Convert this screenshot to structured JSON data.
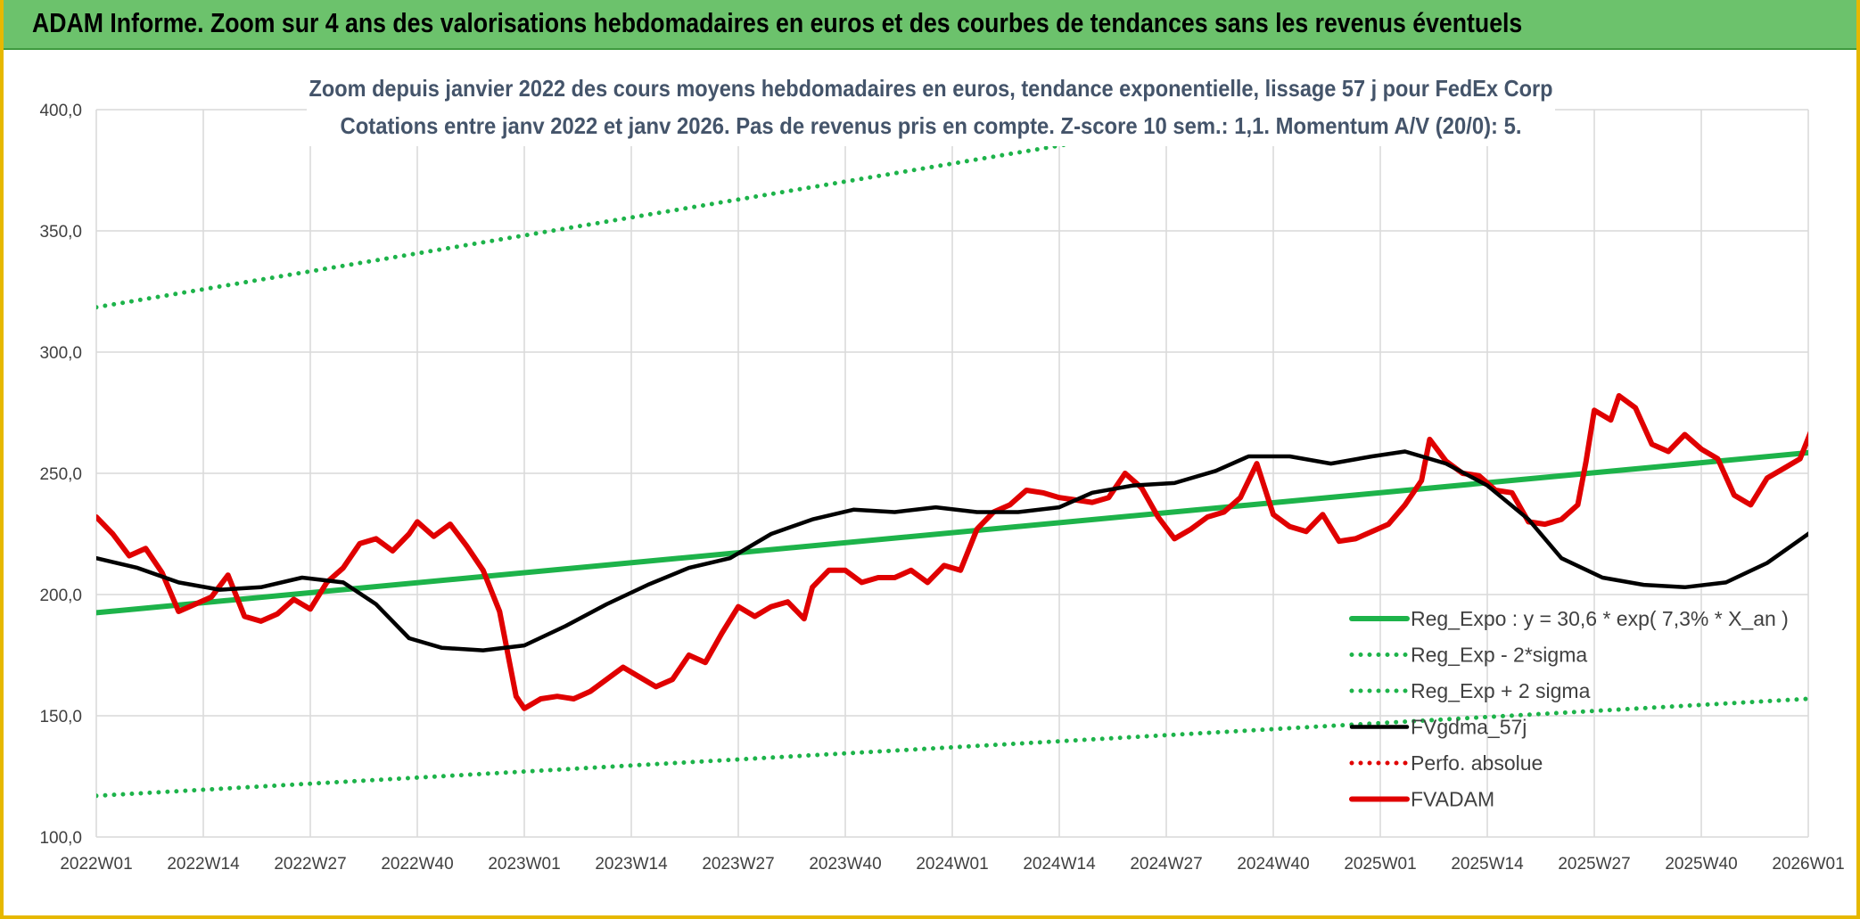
{
  "header": {
    "title": "ADAM Informe. Zoom sur 4 ans des valorisations hebdomadaires en euros et des courbes de tendances sans les revenus éventuels"
  },
  "chart_data": {
    "type": "line",
    "title": "Zoom depuis janvier 2022 des cours moyens hebdomadaires en euros, tendance exponentielle, lissage 57 j pour FedEx Corp",
    "subtitle": "Cotations entre janv 2022 et janv 2026. Pas de revenus pris en compte. Z-score 10 sem.: 1,1. Momentum A/V (20/0): 5.",
    "x_ticks": [
      "2022W01",
      "2022W14",
      "2022W27",
      "2022W40",
      "2023W01",
      "2023W14",
      "2023W27",
      "2023W40",
      "2024W01",
      "2024W14",
      "2024W27",
      "2024W40",
      "2025W01",
      "2025W14",
      "2025W27",
      "2025W40",
      "2026W01"
    ],
    "y_ticks": [
      "100,0",
      "150,0",
      "200,0",
      "250,0",
      "300,0",
      "350,0",
      "400,0"
    ],
    "ylim": [
      100,
      400
    ],
    "grid": true,
    "legend_position": "bottom-right",
    "legend": [
      {
        "label": "Reg_Expo : y = 30,6 * exp( 7,3% *  X_an )",
        "color": "#1db34a",
        "style": "solid"
      },
      {
        "label": "Reg_Exp - 2*sigma",
        "color": "#1db34a",
        "style": "dotted"
      },
      {
        "label": "Reg_Exp + 2 sigma",
        "color": "#1db34a",
        "style": "dotted"
      },
      {
        "label": "FVgdma_57j",
        "color": "#000000",
        "style": "solid"
      },
      {
        "label": "Perfo. absolue",
        "color": "#e00000",
        "style": "dotted"
      },
      {
        "label": "FVADAM",
        "color": "#e00000",
        "style": "solid"
      }
    ],
    "series": [
      {
        "name": "Reg_Expo : y = 30,6 * exp( 7,3% *  X_an )",
        "color": "#1db34a",
        "points": [
          [
            0,
            192.5
          ],
          [
            208,
            258.5
          ]
        ]
      },
      {
        "name": "Reg_Exp - 2*sigma",
        "color": "#1db34a",
        "points": [
          [
            0,
            117
          ],
          [
            208,
            157
          ]
        ]
      },
      {
        "name": "Reg_Exp + 2 sigma",
        "color": "#1db34a",
        "points": [
          [
            0,
            318.5
          ],
          [
            208,
            437
          ]
        ]
      },
      {
        "name": "FVgdma_57j",
        "color": "#000000",
        "points": [
          [
            0,
            215
          ],
          [
            5,
            211
          ],
          [
            10,
            205
          ],
          [
            15,
            202
          ],
          [
            20,
            203
          ],
          [
            25,
            207
          ],
          [
            30,
            205
          ],
          [
            34,
            196
          ],
          [
            38,
            182
          ],
          [
            42,
            178
          ],
          [
            47,
            177
          ],
          [
            52,
            179
          ],
          [
            57,
            187
          ],
          [
            62,
            196
          ],
          [
            67,
            204
          ],
          [
            72,
            211
          ],
          [
            77,
            215
          ],
          [
            82,
            225
          ],
          [
            87,
            231
          ],
          [
            92,
            235
          ],
          [
            97,
            234
          ],
          [
            102,
            236
          ],
          [
            107,
            234
          ],
          [
            112,
            234
          ],
          [
            117,
            236
          ],
          [
            121,
            242
          ],
          [
            126,
            245
          ],
          [
            131,
            246
          ],
          [
            136,
            251
          ],
          [
            140,
            257
          ],
          [
            145,
            257
          ],
          [
            150,
            254
          ],
          [
            155,
            257
          ],
          [
            159,
            259
          ],
          [
            164,
            254
          ],
          [
            169,
            245
          ],
          [
            174,
            231
          ],
          [
            178,
            215
          ],
          [
            183,
            207
          ],
          [
            188,
            204
          ],
          [
            193,
            203
          ],
          [
            198,
            205
          ],
          [
            203,
            213
          ],
          [
            208,
            225
          ],
          [
            213,
            238
          ]
        ]
      },
      {
        "name": "FVADAM",
        "color": "#e00000",
        "points": [
          [
            0,
            232
          ],
          [
            2,
            225
          ],
          [
            4,
            216
          ],
          [
            6,
            219
          ],
          [
            8,
            209
          ],
          [
            10,
            193
          ],
          [
            12,
            196
          ],
          [
            14,
            199
          ],
          [
            16,
            208
          ],
          [
            18,
            191
          ],
          [
            20,
            189
          ],
          [
            22,
            192
          ],
          [
            24,
            198
          ],
          [
            26,
            194
          ],
          [
            28,
            205
          ],
          [
            30,
            211
          ],
          [
            32,
            221
          ],
          [
            34,
            223
          ],
          [
            36,
            218
          ],
          [
            38,
            225
          ],
          [
            39,
            230
          ],
          [
            41,
            224
          ],
          [
            43,
            229
          ],
          [
            45,
            220
          ],
          [
            47,
            210
          ],
          [
            49,
            193
          ],
          [
            51,
            158
          ],
          [
            52,
            153
          ],
          [
            54,
            157
          ],
          [
            56,
            158
          ],
          [
            58,
            157
          ],
          [
            60,
            160
          ],
          [
            62,
            165
          ],
          [
            64,
            170
          ],
          [
            66,
            166
          ],
          [
            68,
            162
          ],
          [
            70,
            165
          ],
          [
            72,
            175
          ],
          [
            74,
            172
          ],
          [
            76,
            184
          ],
          [
            78,
            195
          ],
          [
            80,
            191
          ],
          [
            82,
            195
          ],
          [
            84,
            197
          ],
          [
            86,
            190
          ],
          [
            87,
            203
          ],
          [
            89,
            210
          ],
          [
            91,
            210
          ],
          [
            93,
            205
          ],
          [
            95,
            207
          ],
          [
            97,
            207
          ],
          [
            99,
            210
          ],
          [
            101,
            205
          ],
          [
            103,
            212
          ],
          [
            105,
            210
          ],
          [
            107,
            227
          ],
          [
            109,
            234
          ],
          [
            111,
            237
          ],
          [
            113,
            243
          ],
          [
            115,
            242
          ],
          [
            117,
            240
          ],
          [
            119,
            239
          ],
          [
            121,
            238
          ],
          [
            123,
            240
          ],
          [
            125,
            250
          ],
          [
            127,
            244
          ],
          [
            129,
            232
          ],
          [
            131,
            223
          ],
          [
            133,
            227
          ],
          [
            135,
            232
          ],
          [
            137,
            234
          ],
          [
            139,
            240
          ],
          [
            141,
            254
          ],
          [
            143,
            233
          ],
          [
            145,
            228
          ],
          [
            147,
            226
          ],
          [
            149,
            233
          ],
          [
            151,
            222
          ],
          [
            153,
            223
          ],
          [
            155,
            226
          ],
          [
            157,
            229
          ],
          [
            159,
            237
          ],
          [
            161,
            247
          ],
          [
            162,
            264
          ],
          [
            164,
            255
          ],
          [
            166,
            250
          ],
          [
            168,
            249
          ],
          [
            170,
            243
          ],
          [
            172,
            242
          ],
          [
            174,
            230
          ],
          [
            176,
            229
          ],
          [
            178,
            231
          ],
          [
            180,
            237
          ],
          [
            181,
            255
          ],
          [
            182,
            276
          ],
          [
            184,
            272
          ],
          [
            185,
            282
          ],
          [
            187,
            277
          ],
          [
            189,
            262
          ],
          [
            191,
            259
          ],
          [
            193,
            266
          ],
          [
            195,
            260
          ],
          [
            197,
            256
          ],
          [
            199,
            241
          ],
          [
            201,
            237
          ],
          [
            203,
            248
          ],
          [
            205,
            252
          ],
          [
            207,
            256
          ],
          [
            209,
            273
          ],
          [
            211,
            288
          ]
        ]
      }
    ]
  }
}
